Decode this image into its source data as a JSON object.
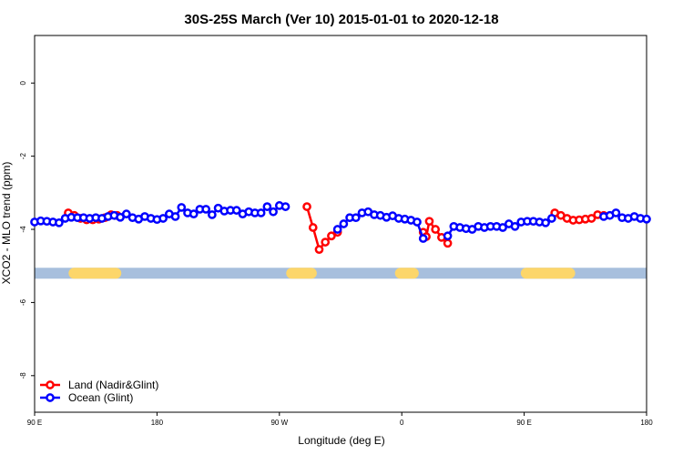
{
  "chart_data": {
    "type": "line",
    "title": "30S-25S March (Ver 10)   2015-01-01 to 2020-12-18",
    "xlabel": "Longitude (deg E)",
    "ylabel": "XCO2 - MLO trend (ppm)",
    "xlim": [
      90,
      450
    ],
    "ylim": [
      -9,
      1.3
    ],
    "x_ticks": [
      {
        "value": 90,
        "label": "90 E"
      },
      {
        "value": 162,
        "label": "180"
      },
      {
        "value": 234,
        "label": "90 W"
      },
      {
        "value": 306,
        "label": "0"
      },
      {
        "value": 378,
        "label": "90 E"
      },
      {
        "value": 450,
        "label": "180"
      }
    ],
    "y_ticks": [
      0,
      -2,
      -4,
      -6,
      -8
    ],
    "grid": false,
    "legend_position": "bottom-left",
    "series": [
      {
        "name": "Land (Nadir&Glint)",
        "color": "#ff0000",
        "segments": [
          [
            [
              109.8,
              -3.55
            ],
            [
              113.4,
              -3.62
            ],
            [
              117,
              -3.7
            ],
            [
              120.6,
              -3.74
            ],
            [
              124.2,
              -3.74
            ],
            [
              127.8,
              -3.72
            ],
            [
              131.4,
              -3.68
            ],
            [
              135,
              -3.6
            ],
            [
              138.6,
              -3.62
            ]
          ],
          [
            [
              250.2,
              -3.38
            ],
            [
              253.8,
              -3.95
            ],
            [
              257.4,
              -4.55
            ],
            [
              261,
              -4.35
            ],
            [
              264.6,
              -4.18
            ],
            [
              268.2,
              -4.08
            ]
          ],
          [
            [
              318.6,
              -4.08
            ],
            [
              320.4,
              -4.2
            ],
            [
              322.2,
              -3.78
            ],
            [
              325.8,
              -4.0
            ],
            [
              329.4,
              -4.22
            ],
            [
              333,
              -4.38
            ]
          ],
          [
            [
              396,
              -3.55
            ],
            [
              399.6,
              -3.62
            ],
            [
              403.2,
              -3.7
            ],
            [
              406.8,
              -3.75
            ],
            [
              410.4,
              -3.74
            ],
            [
              414,
              -3.72
            ],
            [
              417.6,
              -3.7
            ],
            [
              421.2,
              -3.6
            ],
            [
              424.8,
              -3.62
            ]
          ]
        ]
      },
      {
        "name": "Ocean (Glint)",
        "color": "#0000ff",
        "segments": [
          [
            [
              90,
              -3.8
            ],
            [
              93.6,
              -3.77
            ],
            [
              97.2,
              -3.78
            ],
            [
              100.8,
              -3.8
            ],
            [
              104.4,
              -3.82
            ],
            [
              108,
              -3.7
            ],
            [
              111.6,
              -3.67
            ],
            [
              115.2,
              -3.68
            ],
            [
              118.8,
              -3.68
            ],
            [
              122.4,
              -3.7
            ],
            [
              126,
              -3.68
            ],
            [
              129.6,
              -3.7
            ],
            [
              133.2,
              -3.65
            ],
            [
              136.8,
              -3.62
            ],
            [
              140.4,
              -3.67
            ],
            [
              144,
              -3.58
            ],
            [
              147.6,
              -3.68
            ],
            [
              151.2,
              -3.72
            ],
            [
              154.8,
              -3.65
            ],
            [
              158.4,
              -3.7
            ],
            [
              162,
              -3.73
            ],
            [
              165.6,
              -3.7
            ],
            [
              169.2,
              -3.58
            ],
            [
              172.8,
              -3.65
            ],
            [
              176.4,
              -3.4
            ],
            [
              180,
              -3.55
            ],
            [
              183.6,
              -3.58
            ],
            [
              187.2,
              -3.45
            ],
            [
              190.8,
              -3.45
            ],
            [
              194.4,
              -3.6
            ],
            [
              198,
              -3.42
            ],
            [
              201.6,
              -3.5
            ],
            [
              205.2,
              -3.48
            ],
            [
              208.8,
              -3.48
            ],
            [
              212.4,
              -3.58
            ],
            [
              216,
              -3.52
            ],
            [
              219.6,
              -3.55
            ],
            [
              223.2,
              -3.55
            ],
            [
              226.8,
              -3.38
            ],
            [
              230.4,
              -3.52
            ],
            [
              234,
              -3.35
            ],
            [
              237.6,
              -3.38
            ]
          ],
          [
            [
              268.2,
              -4.0
            ],
            [
              271.8,
              -3.85
            ],
            [
              275.4,
              -3.68
            ],
            [
              279,
              -3.68
            ],
            [
              282.6,
              -3.55
            ],
            [
              286.2,
              -3.52
            ],
            [
              289.8,
              -3.6
            ],
            [
              293.4,
              -3.62
            ],
            [
              297,
              -3.67
            ],
            [
              300.6,
              -3.63
            ],
            [
              304.2,
              -3.7
            ],
            [
              307.8,
              -3.72
            ],
            [
              311.4,
              -3.75
            ],
            [
              315,
              -3.8
            ],
            [
              318.6,
              -4.25
            ]
          ],
          [
            [
              333,
              -4.18
            ],
            [
              336.6,
              -3.92
            ],
            [
              340.2,
              -3.95
            ],
            [
              343.8,
              -3.98
            ],
            [
              347.4,
              -4.0
            ],
            [
              351,
              -3.92
            ],
            [
              354.6,
              -3.95
            ],
            [
              358.2,
              -3.92
            ],
            [
              361.8,
              -3.92
            ],
            [
              365.4,
              -3.95
            ],
            [
              369,
              -3.85
            ],
            [
              372.6,
              -3.92
            ],
            [
              376.2,
              -3.8
            ],
            [
              379.8,
              -3.78
            ],
            [
              383.4,
              -3.78
            ],
            [
              387,
              -3.8
            ],
            [
              390.6,
              -3.82
            ],
            [
              394.2,
              -3.7
            ]
          ],
          [
            [
              424.8,
              -3.65
            ],
            [
              428.4,
              -3.62
            ],
            [
              432,
              -3.55
            ],
            [
              435.6,
              -3.68
            ],
            [
              439.2,
              -3.7
            ],
            [
              442.8,
              -3.65
            ],
            [
              446.4,
              -3.7
            ],
            [
              450,
              -3.72
            ]
          ]
        ]
      }
    ],
    "land_band": {
      "y": -5.2,
      "ocean_color": "#a7bfdd",
      "land_color": "#fcd66a",
      "land_ranges": [
        [
          110,
          141
        ],
        [
          238,
          256
        ],
        [
          302,
          316
        ],
        [
          376,
          408
        ]
      ]
    }
  }
}
